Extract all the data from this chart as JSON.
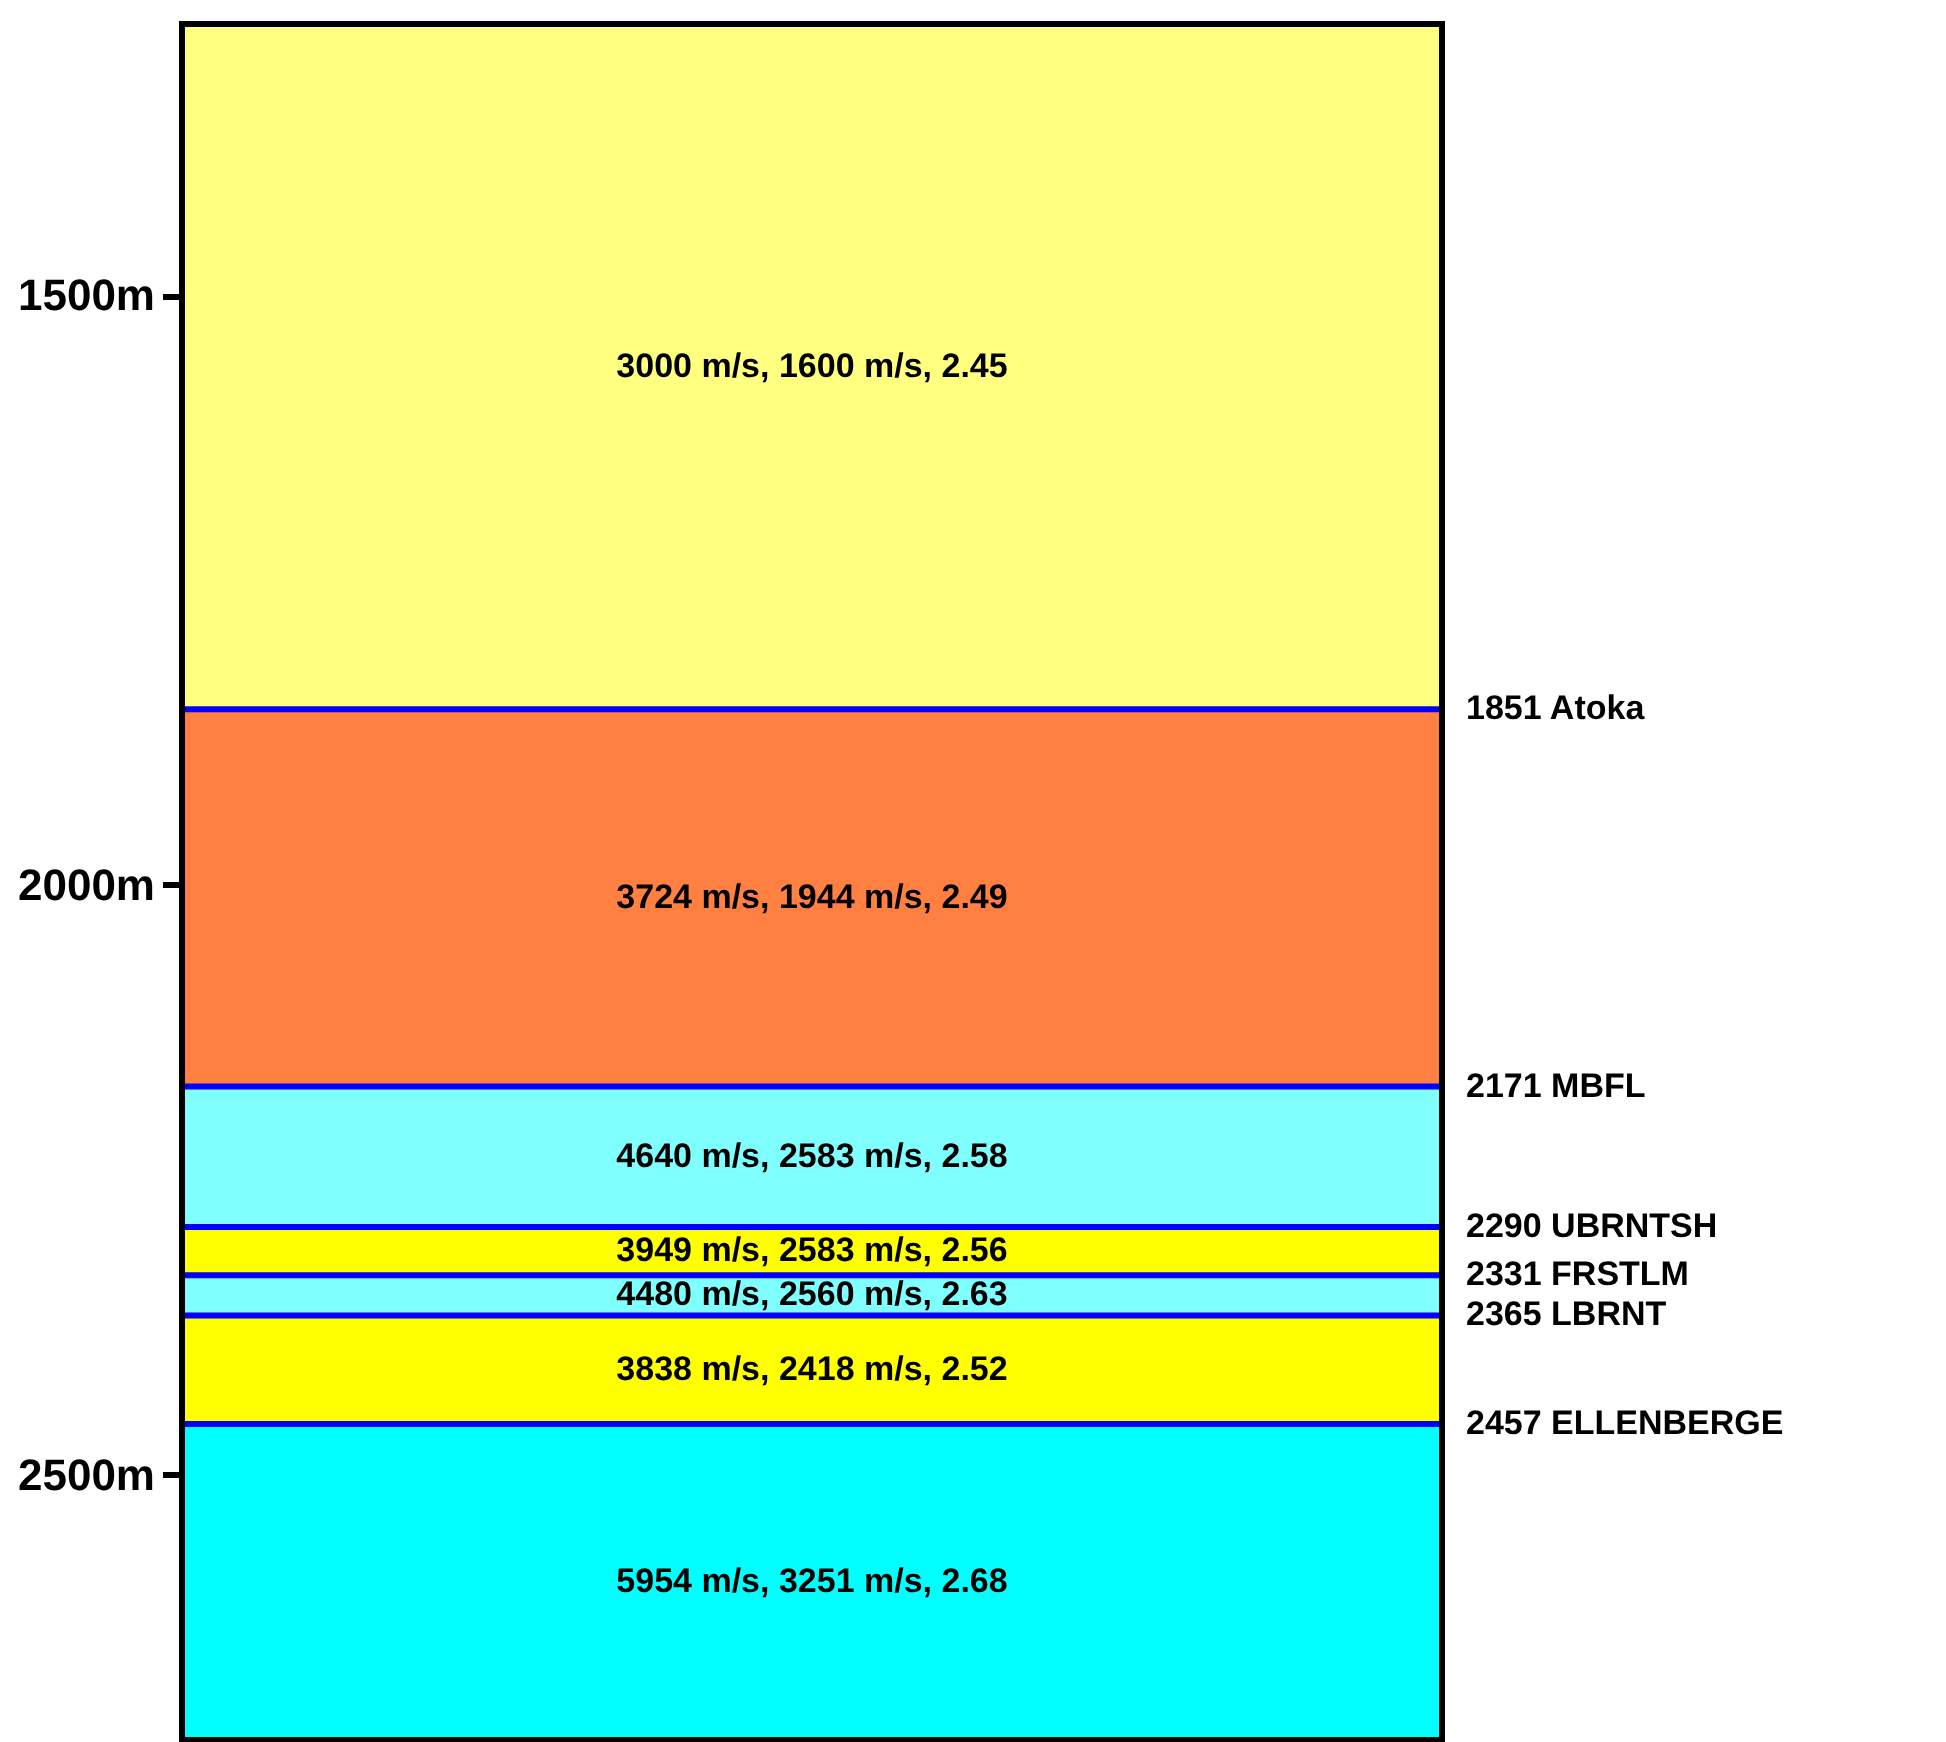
{
  "chart_data": {
    "type": "bar",
    "categories": [
      null
    ],
    "series": [
      {
        "color": "#ffff80",
        "base": [
          1270
        ],
        "values": [
          581
        ]
      },
      {
        "color": "#ff8040",
        "base": [
          1851
        ],
        "values": [
          320
        ]
      },
      {
        "color": "#80ffff",
        "base": [
          2171
        ],
        "values": [
          119
        ]
      },
      {
        "color": "#ffff00",
        "base": [
          2290
        ],
        "values": [
          41
        ]
      },
      {
        "color": "#80ffff",
        "base": [
          2331
        ],
        "values": [
          34
        ]
      },
      {
        "color": "#ffff00",
        "base": [
          2365
        ],
        "values": [
          92
        ]
      },
      {
        "color": "#00ffff",
        "base": [
          2457
        ],
        "values": [
          268
        ]
      }
    ],
    "ylim": [
      2725,
      1270
    ],
    "yticks": [
      {
        "value": 1500,
        "label": "1500m"
      },
      {
        "value": 2000,
        "label": "2000m"
      },
      {
        "value": 2500,
        "label": "2500m"
      }
    ],
    "legend": false,
    "ref_lines": [
      {
        "axis": "y",
        "value": 1851,
        "label": "1851 Atoka",
        "color": "#0000ff"
      },
      {
        "axis": "y",
        "value": 2171,
        "label": "2171 MBFL",
        "color": "#0000ff"
      },
      {
        "axis": "y",
        "value": 2290,
        "label": "2290 UBRNTSH",
        "color": "#0000ff"
      },
      {
        "axis": "y",
        "value": 2331,
        "label": "2331 FRSTLM",
        "color": "#0000ff"
      },
      {
        "axis": "y",
        "value": 2365,
        "label": "2365 LBRNT",
        "color": "#0000ff"
      },
      {
        "axis": "y",
        "value": 2457,
        "label": "2457 ELLENBERGE",
        "color": "#0000ff"
      }
    ],
    "annotations": [
      "3000 m/s,  1600 m/s,  2.45",
      "3724 m/s,  1944 m/s,  2.49",
      "4640 m/s,  2583 m/s,  2.58",
      "3949 m/s,  2583 m/s,  2.56",
      "4480 m/s,  2560 m/s,  2.63",
      "3838 m/s,  2418 m/s,  2.52",
      "5954 m/s,  3251 m/s,  2.68"
    ]
  }
}
